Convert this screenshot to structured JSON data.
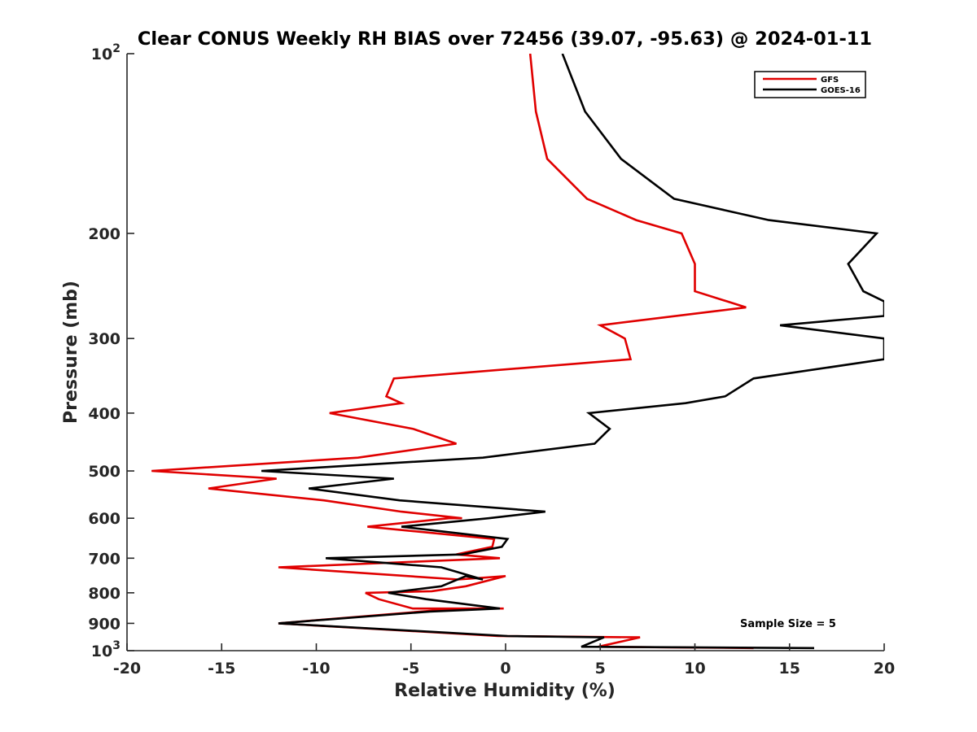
{
  "chart_data": {
    "type": "line",
    "title": "Clear CONUS Weekly RH BIAS over 72456 (39.07, -95.63) @ 2024-01-11",
    "xlabel": "Relative Humidity (%)",
    "ylabel": "Pressure (mb)",
    "xlim": [
      -20,
      20
    ],
    "ylim": [
      1000,
      100
    ],
    "yscale": "log",
    "xticks": [
      -20,
      -15,
      -10,
      -5,
      0,
      5,
      10,
      15,
      20
    ],
    "xtick_labels": [
      "-20",
      "-15",
      "-10",
      "-5",
      "0",
      "5",
      "10",
      "15",
      "20"
    ],
    "yticks": [
      {
        "value": 100,
        "base": "10",
        "exp": "2"
      },
      {
        "value": 200,
        "label": "200"
      },
      {
        "value": 300,
        "label": "300"
      },
      {
        "value": 400,
        "label": "400"
      },
      {
        "value": 500,
        "label": "500"
      },
      {
        "value": 600,
        "label": "600"
      },
      {
        "value": 700,
        "label": "700"
      },
      {
        "value": 800,
        "label": "800"
      },
      {
        "value": 900,
        "label": "900"
      },
      {
        "value": 1000,
        "base": "10",
        "exp": "3"
      }
    ],
    "legend": {
      "position": "top-right",
      "entries": [
        "GFS",
        "GOES-16"
      ]
    },
    "annotation": "Sample Size = 5",
    "series": [
      {
        "name": "GFS",
        "color": "#e00000",
        "points": [
          [
            1.3,
            100
          ],
          [
            1.6,
            125
          ],
          [
            2.2,
            150
          ],
          [
            4.3,
            175
          ],
          [
            6.9,
            190
          ],
          [
            9.3,
            200
          ],
          [
            10.0,
            225
          ],
          [
            10.0,
            250
          ],
          [
            12.7,
            266
          ],
          [
            5.0,
            285
          ],
          [
            6.3,
            300
          ],
          [
            6.6,
            325
          ],
          [
            -5.9,
            350
          ],
          [
            -6.3,
            375
          ],
          [
            -5.5,
            385
          ],
          [
            -9.3,
            400
          ],
          [
            -4.9,
            425
          ],
          [
            -2.6,
            450
          ],
          [
            -7.8,
            475
          ],
          [
            -18.7,
            500
          ],
          [
            -12.1,
            515
          ],
          [
            -15.7,
            535
          ],
          [
            -9.6,
            560
          ],
          [
            -5.5,
            585
          ],
          [
            -2.3,
            600
          ],
          [
            -3.0,
            600
          ],
          [
            -7.3,
            620
          ],
          [
            -0.6,
            650
          ],
          [
            -0.7,
            670
          ],
          [
            -2.6,
            690
          ],
          [
            -0.3,
            700
          ],
          [
            -12.0,
            725
          ],
          [
            -2.5,
            760
          ],
          [
            0.0,
            750
          ],
          [
            -2.1,
            780
          ],
          [
            -3.9,
            795
          ],
          [
            -7.4,
            800
          ],
          [
            -6.7,
            820
          ],
          [
            -4.9,
            850
          ],
          [
            -0.1,
            850
          ],
          [
            -2.5,
            850
          ],
          [
            -12.0,
            900
          ],
          [
            -0.4,
            945
          ],
          [
            7.1,
            950
          ],
          [
            4.9,
            985
          ],
          [
            13.1,
            990
          ]
        ]
      },
      {
        "name": "GOES-16",
        "color": "#000000",
        "points": [
          [
            3.0,
            100
          ],
          [
            4.2,
            125
          ],
          [
            6.1,
            150
          ],
          [
            8.9,
            175
          ],
          [
            13.9,
            190
          ],
          [
            19.6,
            200
          ],
          [
            18.1,
            225
          ],
          [
            18.9,
            250
          ],
          [
            20.0,
            260
          ],
          [
            20.0,
            275
          ],
          [
            14.5,
            285
          ],
          [
            20.0,
            300
          ],
          [
            20.0,
            325
          ],
          [
            13.1,
            350
          ],
          [
            11.6,
            375
          ],
          [
            9.5,
            385
          ],
          [
            4.4,
            400
          ],
          [
            5.5,
            425
          ],
          [
            4.7,
            450
          ],
          [
            -1.2,
            475
          ],
          [
            -12.9,
            500
          ],
          [
            -5.9,
            515
          ],
          [
            -10.4,
            535
          ],
          [
            -5.6,
            560
          ],
          [
            2.1,
            585
          ],
          [
            -0.9,
            600
          ],
          [
            -5.5,
            620
          ],
          [
            0.1,
            650
          ],
          [
            -0.2,
            670
          ],
          [
            -2.3,
            690
          ],
          [
            -9.5,
            700
          ],
          [
            -3.4,
            725
          ],
          [
            -1.2,
            760
          ],
          [
            -2.1,
            750
          ],
          [
            -3.4,
            780
          ],
          [
            -6.2,
            800
          ],
          [
            -4.2,
            820
          ],
          [
            -0.3,
            850
          ],
          [
            -4.0,
            860
          ],
          [
            -12.0,
            900
          ],
          [
            0.1,
            945
          ],
          [
            5.2,
            950
          ],
          [
            4.0,
            985
          ],
          [
            16.3,
            990
          ]
        ]
      }
    ]
  }
}
